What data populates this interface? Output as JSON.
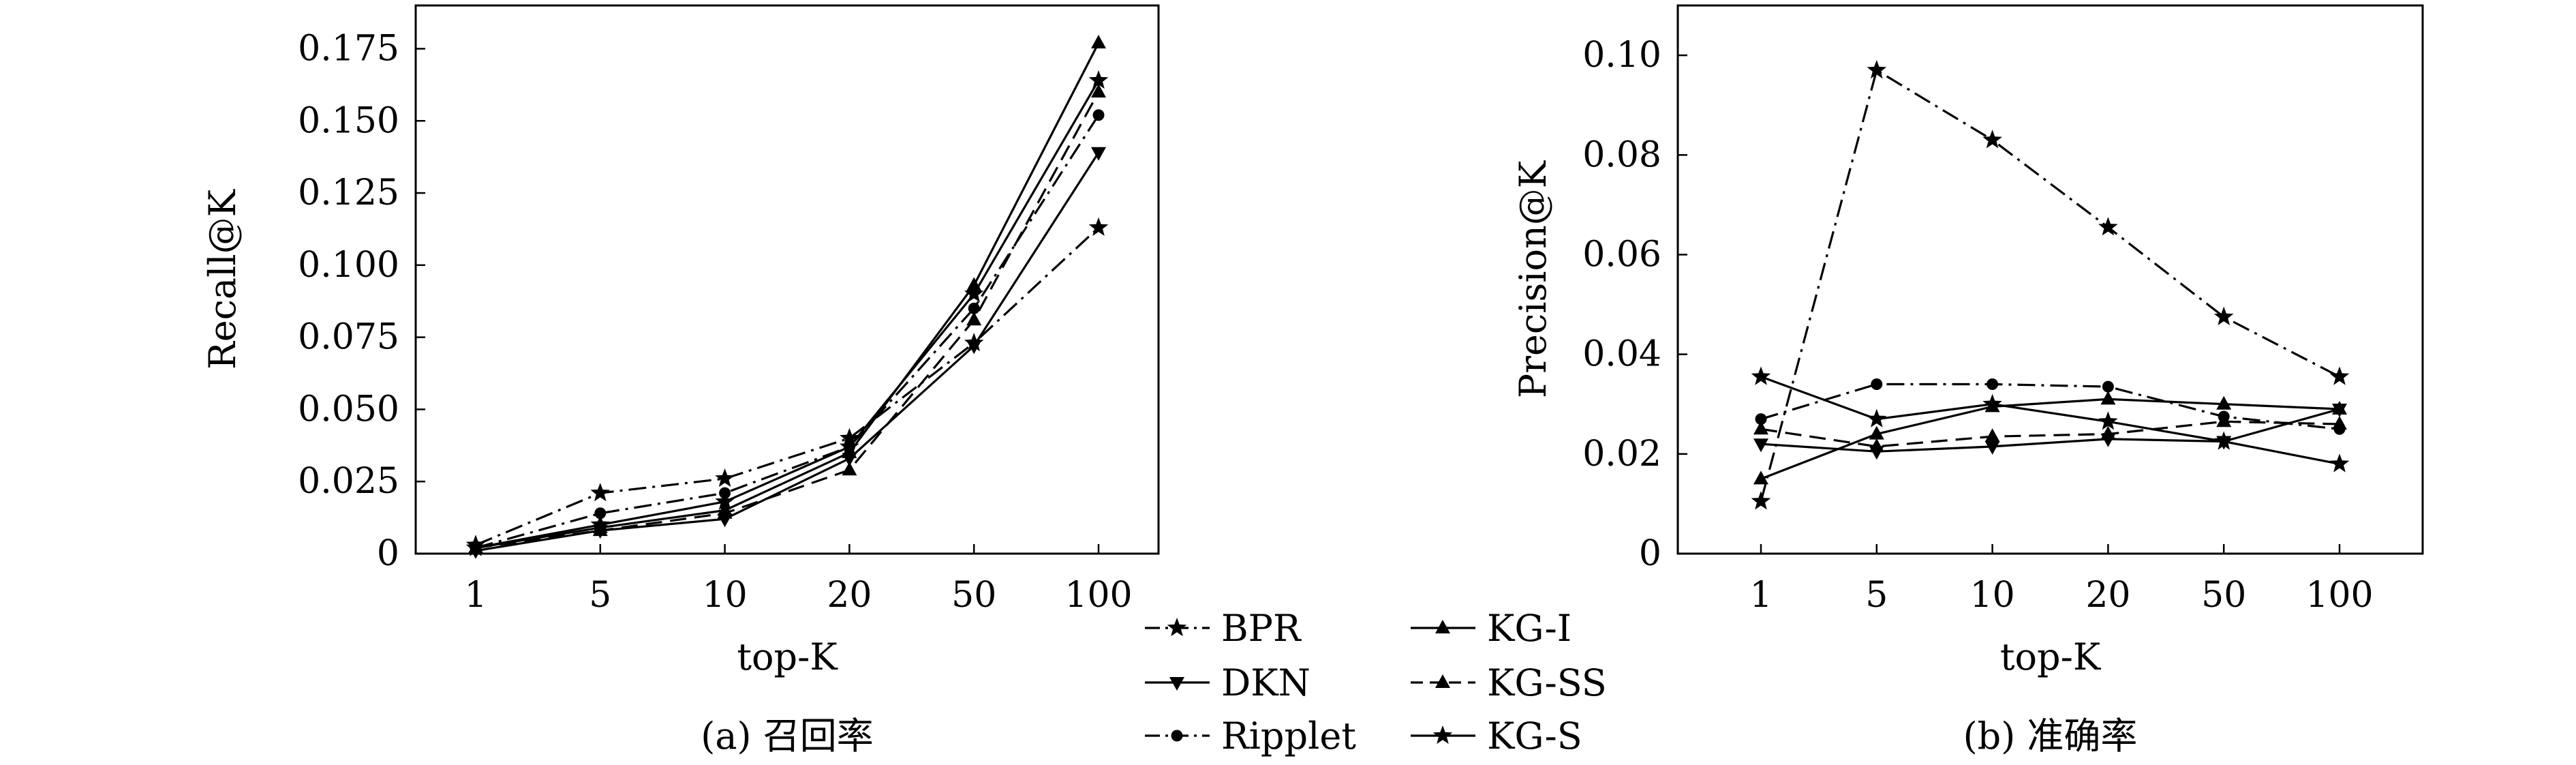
{
  "chart_data": [
    {
      "type": "line",
      "caption": "(a) 召回率",
      "xlabel": "top-K",
      "ylabel": "Recall@K",
      "categories": [
        "1",
        "5",
        "10",
        "20",
        "50",
        "100"
      ],
      "yticks": [
        "0",
        "0.025",
        "0.050",
        "0.075",
        "0.100",
        "0.125",
        "0.150",
        "0.175"
      ],
      "ylim": [
        0,
        0.19
      ],
      "series": [
        {
          "name": "BPR",
          "values": [
            0.003,
            0.021,
            0.026,
            0.04,
            0.073,
            0.113
          ]
        },
        {
          "name": "DKN",
          "values": [
            0.001,
            0.008,
            0.012,
            0.033,
            0.072,
            0.139
          ]
        },
        {
          "name": "Ripplet",
          "values": [
            0.002,
            0.014,
            0.021,
            0.037,
            0.085,
            0.152
          ]
        },
        {
          "name": "KG-I",
          "values": [
            0.002,
            0.009,
            0.015,
            0.035,
            0.093,
            0.177
          ]
        },
        {
          "name": "KG-SS",
          "values": [
            0.002,
            0.008,
            0.014,
            0.029,
            0.081,
            0.16
          ]
        },
        {
          "name": "KG-S",
          "values": [
            0.002,
            0.01,
            0.018,
            0.037,
            0.09,
            0.164
          ]
        }
      ]
    },
    {
      "type": "line",
      "caption": "(b) 准确率",
      "xlabel": "top-K",
      "ylabel": "Precision@K",
      "categories": [
        "1",
        "5",
        "10",
        "20",
        "50",
        "100"
      ],
      "yticks": [
        "0",
        "0.02",
        "0.04",
        "0.06",
        "0.08",
        "0.10"
      ],
      "ylim": [
        0,
        0.11
      ],
      "series": [
        {
          "name": "BPR",
          "values": [
            0.0105,
            0.097,
            0.083,
            0.0655,
            0.0475,
            0.0355
          ]
        },
        {
          "name": "DKN",
          "values": [
            0.022,
            0.0205,
            0.0215,
            0.023,
            0.0225,
            0.029
          ]
        },
        {
          "name": "Ripplet",
          "values": [
            0.027,
            0.034,
            0.034,
            0.0335,
            0.0275,
            0.025
          ]
        },
        {
          "name": "KG-I",
          "values": [
            0.015,
            0.024,
            0.0295,
            0.031,
            0.03,
            0.029
          ]
        },
        {
          "name": "KG-SS",
          "values": [
            0.025,
            0.0215,
            0.0235,
            0.024,
            0.0265,
            0.026
          ]
        },
        {
          "name": "KG-S",
          "values": [
            0.0355,
            0.027,
            0.03,
            0.0265,
            0.0225,
            0.018
          ]
        }
      ]
    }
  ],
  "legend": [
    {
      "name": "BPR",
      "marker": "star",
      "dash": "dashdot"
    },
    {
      "name": "KG-I",
      "marker": "triangle",
      "dash": "solid"
    },
    {
      "name": "DKN",
      "marker": "tri-down",
      "dash": "solid"
    },
    {
      "name": "KG-SS",
      "marker": "triangle",
      "dash": "dashed"
    },
    {
      "name": "Ripplet",
      "marker": "circle",
      "dash": "dashdot"
    },
    {
      "name": "KG-S",
      "marker": "star",
      "dash": "solid"
    }
  ]
}
